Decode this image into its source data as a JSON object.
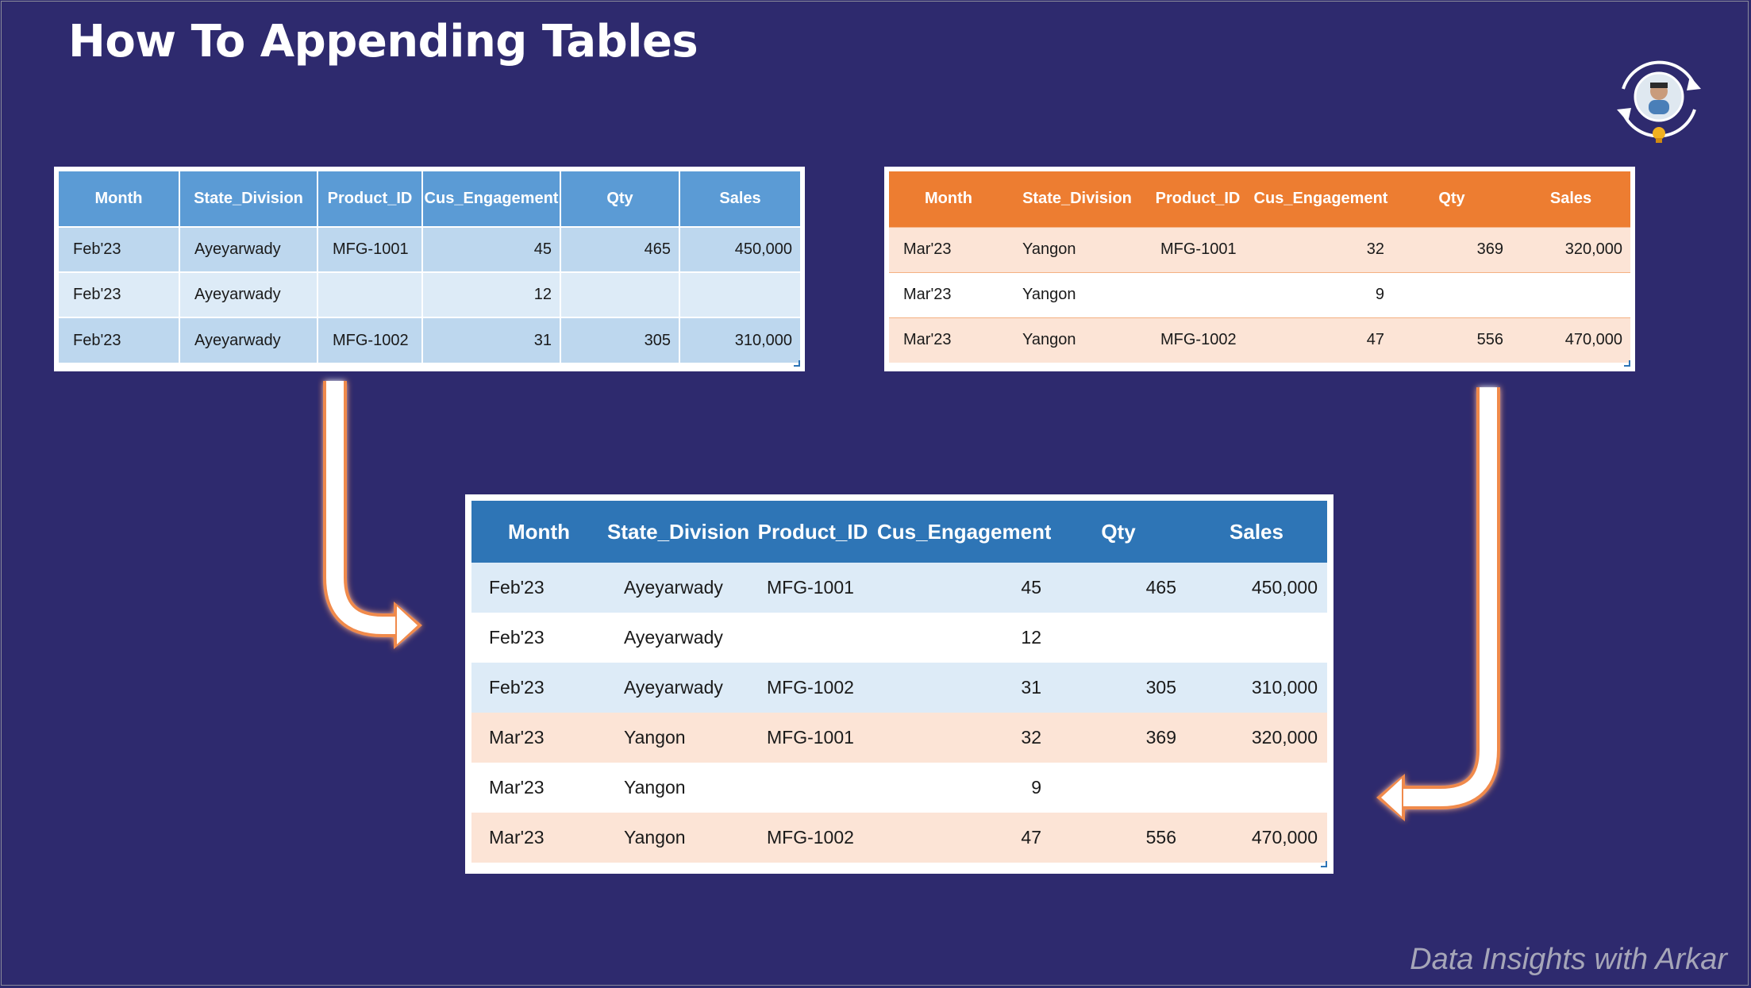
{
  "title": "How To Appending Tables",
  "watermark": "Data Insights with Arkar",
  "colors": {
    "background": "#2e2a6e",
    "table1_header": "#5b9bd5",
    "table2_header": "#ed7d31",
    "result_header": "#2e75b6"
  },
  "columns": [
    "Month",
    "State_Division",
    "Product_ID",
    "Cus_Engagement",
    "Qty",
    "Sales"
  ],
  "table1": [
    [
      "Feb'23",
      "Ayeyarwady",
      "MFG-1001",
      "45",
      "465",
      "450,000"
    ],
    [
      "Feb'23",
      "Ayeyarwady",
      "",
      "12",
      "",
      ""
    ],
    [
      "Feb'23",
      "Ayeyarwady",
      "MFG-1002",
      "31",
      "305",
      "310,000"
    ]
  ],
  "table2": [
    [
      "Mar'23",
      "Yangon",
      "MFG-1001",
      "32",
      "369",
      "320,000"
    ],
    [
      "Mar'23",
      "Yangon",
      "",
      "9",
      "",
      ""
    ],
    [
      "Mar'23",
      "Yangon",
      "MFG-1002",
      "47",
      "556",
      "470,000"
    ]
  ],
  "result": [
    [
      "Feb'23",
      "Ayeyarwady",
      "MFG-1001",
      "45",
      "465",
      "450,000"
    ],
    [
      "Feb'23",
      "Ayeyarwady",
      "",
      "12",
      "",
      ""
    ],
    [
      "Feb'23",
      "Ayeyarwady",
      "MFG-1002",
      "31",
      "305",
      "310,000"
    ],
    [
      "Mar'23",
      "Yangon",
      "MFG-1001",
      "32",
      "369",
      "320,000"
    ],
    [
      "Mar'23",
      "Yangon",
      "",
      "9",
      "",
      ""
    ],
    [
      "Mar'23",
      "Yangon",
      "MFG-1002",
      "47",
      "556",
      "470,000"
    ]
  ],
  "icons": {
    "logo": "refresh-cycle-avatar-icon",
    "arrow_left_table": "curved-arrow-right-icon",
    "arrow_right_table": "curved-arrow-left-icon"
  }
}
